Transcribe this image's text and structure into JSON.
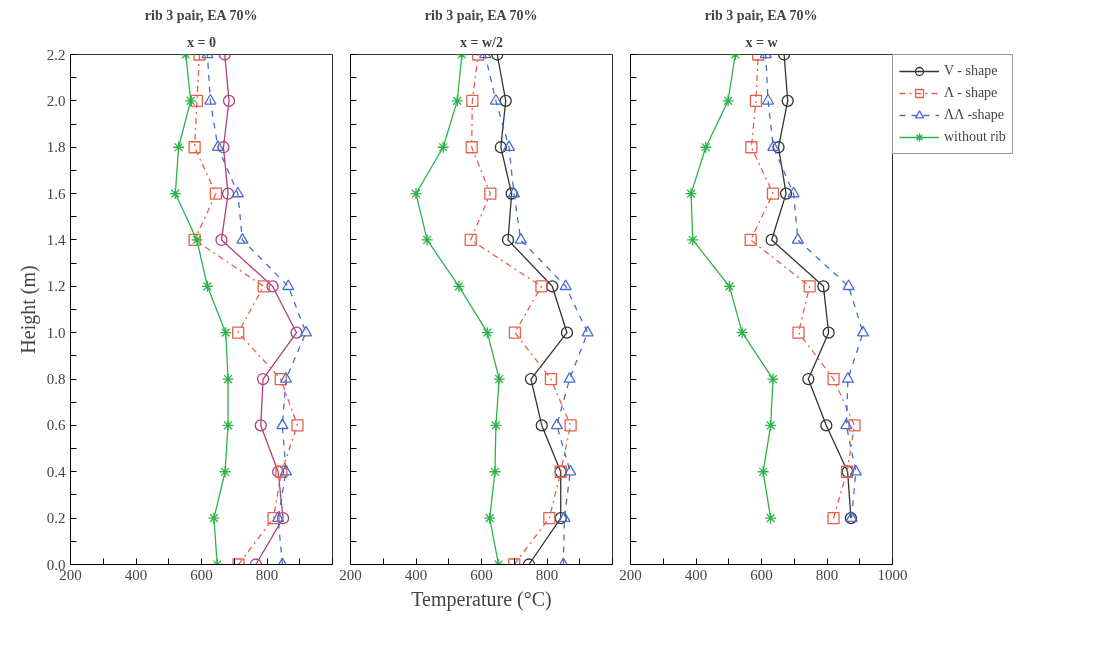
{
  "chart_data": [
    {
      "type": "line",
      "title": "rib 3 pair, EA 70%",
      "subtitle": "x = 0",
      "ylabel": "Height (m)",
      "xlim": [
        200,
        1000
      ],
      "ylim": [
        0,
        2.2
      ],
      "xticks": [
        200,
        {
          "value": 300,
          "label": null
        },
        400,
        {
          "value": 500,
          "label": null
        },
        600,
        {
          "value": 700,
          "label": null
        },
        800,
        {
          "value": 900,
          "label": null
        },
        {
          "value": 1000,
          "label": null
        }
      ],
      "yticks": [
        {
          "value": 0,
          "label": "0.0"
        },
        {
          "value": 0.1,
          "label": null
        },
        {
          "value": 0.2,
          "label": "0.2"
        },
        {
          "value": 0.3,
          "label": null
        },
        {
          "value": 0.4,
          "label": "0.4"
        },
        {
          "value": 0.5,
          "label": null
        },
        {
          "value": 0.6,
          "label": "0.6"
        },
        {
          "value": 0.7,
          "label": null
        },
        {
          "value": 0.8,
          "label": "0.8"
        },
        {
          "value": 0.9,
          "label": null
        },
        {
          "value": 1.0,
          "label": "1.0"
        },
        {
          "value": 1.1,
          "label": null
        },
        {
          "value": 1.2,
          "label": "1.2"
        },
        {
          "value": 1.3,
          "label": null
        },
        {
          "value": 1.4,
          "label": "1.4"
        },
        {
          "value": 1.5,
          "label": null
        },
        {
          "value": 1.6,
          "label": "1.6"
        },
        {
          "value": 1.7,
          "label": null
        },
        {
          "value": 1.8,
          "label": "1.8"
        },
        {
          "value": 1.9,
          "label": null
        },
        {
          "value": 2.0,
          "label": "2.0"
        },
        {
          "value": 2.1,
          "label": null
        },
        {
          "value": 2.2,
          "label": "2.2"
        }
      ],
      "series": [
        {
          "color": "#b0407a",
          "marker": "circle",
          "line_style": "solid",
          "x": [
            766,
            849,
            834,
            781,
            788,
            890,
            817,
            661,
            681,
            667,
            684,
            671
          ],
          "values": [
            0,
            0.2,
            0.4,
            0.6,
            0.8,
            1.0,
            1.2,
            1.4,
            1.6,
            1.8,
            2.0,
            2.2
          ]
        },
        {
          "color": "#e8604a",
          "marker": "square",
          "line_style": "dotted",
          "x": [
            713,
            820,
            844,
            893,
            842,
            712,
            790,
            579,
            644,
            579,
            586,
            594
          ],
          "values": [
            0,
            0.2,
            0.4,
            0.6,
            0.8,
            1.0,
            1.2,
            1.4,
            1.6,
            1.8,
            2.0,
            2.2
          ]
        },
        {
          "color": "#4a6ccc",
          "marker": "triangle",
          "line_style": "dashed",
          "x": [
            847,
            834,
            858,
            847,
            858,
            919,
            865,
            725,
            711,
            650,
            627,
            618
          ],
          "values": [
            0,
            0.2,
            0.4,
            0.6,
            0.8,
            1.0,
            1.2,
            1.4,
            1.6,
            1.8,
            2.0,
            2.2
          ]
        },
        {
          "color": "#2db34a",
          "marker": "cross",
          "line_style": "solid",
          "x": [
            648,
            638,
            672,
            681,
            681,
            674,
            618,
            586,
            520,
            530,
            567,
            552
          ],
          "values": [
            0,
            0.2,
            0.4,
            0.6,
            0.8,
            1.0,
            1.2,
            1.4,
            1.6,
            1.8,
            2.0,
            2.2
          ]
        }
      ]
    },
    {
      "type": "line",
      "title": "rib 3 pair, EA 70%",
      "subtitle": "x = w/2",
      "xlabel": "Temperature (°C)",
      "xlim": [
        200,
        1000
      ],
      "ylim": [
        0,
        2.2
      ],
      "tick_labels": "x",
      "xticks": [
        200,
        {
          "value": 300,
          "label": null
        },
        400,
        {
          "value": 500,
          "label": null
        },
        600,
        {
          "value": 700,
          "label": null
        },
        800,
        {
          "value": 900,
          "label": null
        },
        {
          "value": 1000,
          "label": null
        }
      ],
      "yticks": [
        {
          "value": 0,
          "label": null
        },
        {
          "value": 0.1,
          "label": null
        },
        {
          "value": 0.2,
          "label": null
        },
        {
          "value": 0.3,
          "label": null
        },
        {
          "value": 0.4,
          "label": null
        },
        {
          "value": 0.5,
          "label": null
        },
        {
          "value": 0.6,
          "label": null
        },
        {
          "value": 0.7,
          "label": null
        },
        {
          "value": 0.8,
          "label": null
        },
        {
          "value": 0.9,
          "label": null
        },
        {
          "value": 1.0,
          "label": null
        },
        {
          "value": 1.1,
          "label": null
        },
        {
          "value": 1.2,
          "label": null
        },
        {
          "value": 1.3,
          "label": null
        },
        {
          "value": 1.4,
          "label": null
        },
        {
          "value": 1.5,
          "label": null
        },
        {
          "value": 1.6,
          "label": null
        },
        {
          "value": 1.7,
          "label": null
        },
        {
          "value": 1.8,
          "label": null
        },
        {
          "value": 1.9,
          "label": null
        },
        {
          "value": 2.0,
          "label": null
        },
        {
          "value": 2.1,
          "label": null
        },
        {
          "value": 2.2,
          "label": null
        }
      ],
      "series": [
        {
          "color": "#333333",
          "marker": "circle",
          "line_style": "solid",
          "x": [
            745,
            842,
            842,
            784,
            751,
            861,
            816,
            681,
            692,
            659,
            674,
            648
          ],
          "values": [
            0,
            0.2,
            0.4,
            0.6,
            0.8,
            1.0,
            1.2,
            1.4,
            1.6,
            1.8,
            2.0,
            2.2
          ]
        },
        {
          "color": "#e8604a",
          "marker": "square",
          "line_style": "dotted",
          "x": [
            700,
            807,
            842,
            872,
            812,
            702,
            783,
            567,
            627,
            570,
            572,
            590
          ],
          "values": [
            0,
            0.2,
            0.4,
            0.6,
            0.8,
            1.0,
            1.2,
            1.4,
            1.6,
            1.8,
            2.0,
            2.2
          ]
        },
        {
          "color": "#4a6ccc",
          "marker": "triangle",
          "line_style": "dashed",
          "x": [
            850,
            853,
            871,
            830,
            869,
            924,
            857,
            720,
            699,
            684,
            644,
            611
          ],
          "values": [
            0,
            0.2,
            0.4,
            0.6,
            0.8,
            1.0,
            1.2,
            1.4,
            1.6,
            1.8,
            2.0,
            2.2
          ]
        },
        {
          "color": "#2db34a",
          "marker": "cross",
          "line_style": "solid",
          "x": [
            652,
            625,
            641,
            644,
            654,
            618,
            531,
            434,
            400,
            483,
            526,
            540
          ],
          "values": [
            0,
            0.2,
            0.4,
            0.6,
            0.8,
            1.0,
            1.2,
            1.4,
            1.6,
            1.8,
            2.0,
            2.2
          ]
        }
      ]
    },
    {
      "type": "line",
      "title": "rib 3 pair, EA 70%",
      "subtitle": "x = w",
      "xlim": [
        200,
        1000
      ],
      "ylim": [
        0,
        2.2
      ],
      "tick_labels": "x",
      "legend": "right",
      "xticks": [
        200,
        {
          "value": 300,
          "label": null
        },
        400,
        {
          "value": 500,
          "label": null
        },
        600,
        {
          "value": 700,
          "label": null
        },
        800,
        {
          "value": 900,
          "label": null
        },
        1000
      ],
      "yticks": [
        {
          "value": 0,
          "label": null
        },
        {
          "value": 0.1,
          "label": null
        },
        {
          "value": 0.2,
          "label": null
        },
        {
          "value": 0.3,
          "label": null
        },
        {
          "value": 0.4,
          "label": null
        },
        {
          "value": 0.5,
          "label": null
        },
        {
          "value": 0.6,
          "label": null
        },
        {
          "value": 0.7,
          "label": null
        },
        {
          "value": 0.8,
          "label": null
        },
        {
          "value": 0.9,
          "label": null
        },
        {
          "value": 1.0,
          "label": null
        },
        {
          "value": 1.1,
          "label": null
        },
        {
          "value": 1.2,
          "label": null
        },
        {
          "value": 1.3,
          "label": null
        },
        {
          "value": 1.4,
          "label": null
        },
        {
          "value": 1.5,
          "label": null
        },
        {
          "value": 1.6,
          "label": null
        },
        {
          "value": 1.7,
          "label": null
        },
        {
          "value": 1.8,
          "label": null
        },
        {
          "value": 1.9,
          "label": null
        },
        {
          "value": 2.0,
          "label": null
        },
        {
          "value": 2.1,
          "label": null
        },
        {
          "value": 2.2,
          "label": null
        }
      ],
      "series": [
        {
          "name": "V - shape",
          "color": "#333333",
          "marker": "circle",
          "line_style": "solid",
          "x": [
            873,
            863,
            798,
            743,
            805,
            789,
            631,
            675,
            652,
            680,
            669
          ],
          "values": [
            0.2,
            0.4,
            0.6,
            0.8,
            1.0,
            1.2,
            1.4,
            1.6,
            1.8,
            2.0,
            2.2
          ]
        },
        {
          "name": "Λ - shape",
          "color": "#e8604a",
          "marker": "square",
          "line_style": "dotted",
          "x": [
            820,
            861,
            884,
            820,
            713,
            747,
            567,
            635,
            569,
            583,
            590
          ],
          "values": [
            0.2,
            0.4,
            0.6,
            0.8,
            1.0,
            1.2,
            1.4,
            1.6,
            1.8,
            2.0,
            2.2
          ]
        },
        {
          "name": "ΛΛ -shape",
          "color": "#4a6ccc",
          "marker": "triangle",
          "line_style": "dashed",
          "x": [
            875,
            888,
            859,
            864,
            910,
            866,
            711,
            698,
            636,
            620,
            613
          ],
          "values": [
            0.2,
            0.4,
            0.6,
            0.8,
            1.0,
            1.2,
            1.4,
            1.6,
            1.8,
            2.0,
            2.2
          ]
        },
        {
          "name": "without rib",
          "color": "#2db34a",
          "marker": "cross",
          "line_style": "solid",
          "x": [
            628,
            605,
            628,
            635,
            541,
            502,
            390,
            385,
            430,
            498,
            520
          ],
          "values": [
            0.2,
            0.4,
            0.6,
            0.8,
            1.0,
            1.2,
            1.4,
            1.6,
            1.8,
            2.0,
            2.2
          ]
        }
      ]
    }
  ]
}
